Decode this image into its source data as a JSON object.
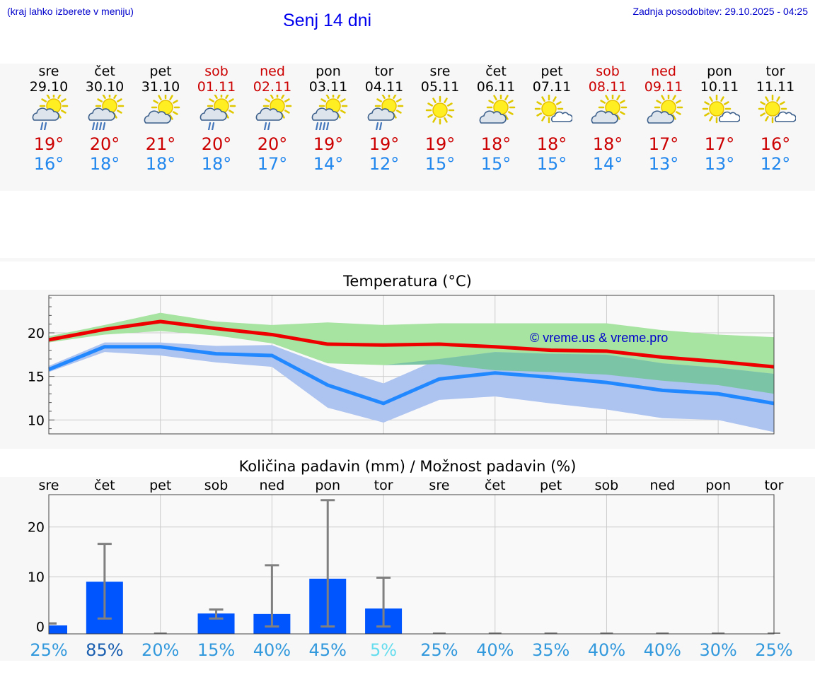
{
  "header": {
    "hint": "(kraj lahko izberete v meniju)",
    "title": "Senj 14 dni",
    "updated": "Zadnja posodobitev: 29.10.2025 - 04:25"
  },
  "days": [
    {
      "name": "sre",
      "date": "29.10",
      "weekend": false,
      "icon": "sun-cloud-rain-icon",
      "max": "19°",
      "min": "16°"
    },
    {
      "name": "čet",
      "date": "30.10",
      "weekend": false,
      "icon": "sun-cloud-heavy-rain-icon",
      "max": "20°",
      "min": "18°"
    },
    {
      "name": "pet",
      "date": "31.10",
      "weekend": false,
      "icon": "sun-cloud-icon",
      "max": "21°",
      "min": "18°"
    },
    {
      "name": "sob",
      "date": "01.11",
      "weekend": true,
      "icon": "sun-cloud-rain-icon",
      "max": "20°",
      "min": "18°"
    },
    {
      "name": "ned",
      "date": "02.11",
      "weekend": true,
      "icon": "sun-cloud-rain-icon",
      "max": "20°",
      "min": "17°"
    },
    {
      "name": "pon",
      "date": "03.11",
      "weekend": false,
      "icon": "sun-cloud-heavy-rain-icon",
      "max": "19°",
      "min": "14°"
    },
    {
      "name": "tor",
      "date": "04.11",
      "weekend": false,
      "icon": "sun-cloud-rain-icon",
      "max": "19°",
      "min": "12°"
    },
    {
      "name": "sre",
      "date": "05.11",
      "weekend": false,
      "icon": "sun-icon",
      "max": "19°",
      "min": "15°"
    },
    {
      "name": "čet",
      "date": "06.11",
      "weekend": false,
      "icon": "sun-cloud-icon",
      "max": "18°",
      "min": "15°"
    },
    {
      "name": "pet",
      "date": "07.11",
      "weekend": false,
      "icon": "sun-small-cloud-icon",
      "max": "18°",
      "min": "15°"
    },
    {
      "name": "sob",
      "date": "08.11",
      "weekend": true,
      "icon": "sun-cloud-icon",
      "max": "18°",
      "min": "14°"
    },
    {
      "name": "ned",
      "date": "09.11",
      "weekend": true,
      "icon": "sun-cloud-icon",
      "max": "17°",
      "min": "13°"
    },
    {
      "name": "pon",
      "date": "10.11",
      "weekend": false,
      "icon": "sun-small-cloud-icon",
      "max": "17°",
      "min": "13°"
    },
    {
      "name": "tor",
      "date": "11.11",
      "weekend": false,
      "icon": "sun-small-cloud-icon",
      "max": "16°",
      "min": "12°"
    }
  ],
  "colors": {
    "max_line": "#ee0000",
    "min_line": "#2288ff",
    "max_band": "#a7e3a1",
    "min_band": "#adc3f0",
    "overlap_band": "#7cc4a6",
    "bar": "#0055ff",
    "whisker": "#808080",
    "grid": "#cccccc"
  },
  "chart_data": [
    {
      "type": "line",
      "title": "Temperatura (°C)",
      "watermark": "© vreme.us & vreme.pro",
      "x": [
        0,
        1,
        2,
        3,
        4,
        5,
        6,
        7,
        8,
        9,
        10,
        11,
        12,
        13
      ],
      "ylim": [
        8.4,
        24.3
      ],
      "yticks": [
        10,
        15,
        20
      ],
      "series": [
        {
          "name": "max",
          "values": [
            19.2,
            20.4,
            21.3,
            20.5,
            19.8,
            18.7,
            18.6,
            18.7,
            18.4,
            18.0,
            17.9,
            17.2,
            16.7,
            16.1
          ]
        },
        {
          "name": "max_low",
          "values": [
            18.9,
            19.8,
            20.2,
            19.7,
            18.8,
            16.5,
            16.3,
            16.4,
            15.7,
            15.5,
            15.2,
            14.5,
            14.0,
            13.0
          ]
        },
        {
          "name": "max_high",
          "values": [
            19.6,
            20.9,
            22.3,
            21.3,
            20.9,
            21.2,
            20.9,
            21.1,
            21.1,
            21.1,
            21.1,
            20.3,
            19.8,
            19.5
          ]
        },
        {
          "name": "min",
          "values": [
            15.8,
            18.4,
            18.4,
            17.6,
            17.4,
            14.0,
            11.9,
            14.7,
            15.4,
            14.9,
            14.3,
            13.4,
            13.0,
            11.9
          ]
        },
        {
          "name": "min_low",
          "values": [
            15.5,
            17.8,
            17.4,
            16.6,
            16.1,
            11.4,
            9.7,
            12.3,
            12.7,
            11.9,
            11.2,
            10.2,
            10.0,
            8.6
          ]
        },
        {
          "name": "min_high",
          "values": [
            16.2,
            18.9,
            18.9,
            18.5,
            18.6,
            16.2,
            14.2,
            17.0,
            17.8,
            17.6,
            17.5,
            16.5,
            16.0,
            15.3
          ]
        }
      ]
    },
    {
      "type": "bar",
      "title": "Količina padavin (mm) / Možnost padavin (%)",
      "categories": [
        "sre",
        "čet",
        "pet",
        "sob",
        "ned",
        "pon",
        "tor",
        "sre",
        "čet",
        "pet",
        "sob",
        "ned",
        "pon",
        "tor"
      ],
      "ylim": [
        -1.5,
        26.5
      ],
      "yticks": [
        0,
        10,
        20
      ],
      "values": [
        0.2,
        9.0,
        0,
        2.6,
        2.5,
        9.6,
        3.6,
        0,
        0,
        0,
        0,
        0,
        0,
        0
      ],
      "error_low": [
        0.6,
        1.6,
        0,
        1.6,
        0,
        0,
        0,
        0,
        0,
        0,
        0,
        0,
        0,
        0
      ],
      "error_high": [
        0.6,
        16.6,
        0,
        3.4,
        12.3,
        25.4,
        9.8,
        0,
        0,
        0,
        0,
        0,
        0,
        0
      ],
      "probability": [
        "25%",
        "85%",
        "20%",
        "15%",
        "40%",
        "45%",
        "5%",
        "25%",
        "40%",
        "35%",
        "40%",
        "40%",
        "30%",
        "25%"
      ],
      "probability_colors": [
        "#3399dd",
        "#1a5fb0",
        "#3399dd",
        "#3399dd",
        "#3399dd",
        "#3399dd",
        "#66ddee",
        "#3399dd",
        "#3399dd",
        "#3399dd",
        "#3399dd",
        "#3399dd",
        "#3399dd",
        "#3399dd"
      ]
    }
  ]
}
